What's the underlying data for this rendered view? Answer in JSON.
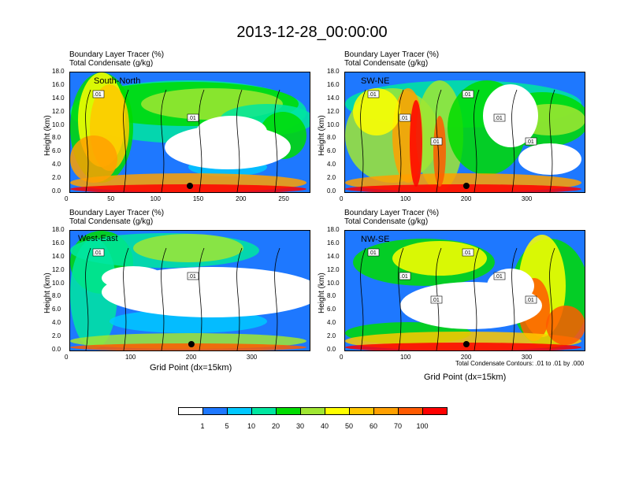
{
  "figure": {
    "title": "2013-12-28_00:00:00",
    "xlabel": "Grid Point (dx=15km)",
    "contour_note": "Total Condensate Contours: .01 to .01 by .000",
    "label_line1": "Boundary Layer Tracer    (%)",
    "label_line2": "Total Condensate    (g/kg)",
    "ylabel": "Height (km)",
    "yticks": [
      "0.0",
      "2.0",
      "4.0",
      "6.0",
      "8.0",
      "10.0",
      "12.0",
      "14.0",
      "16.0",
      "18.0"
    ]
  },
  "colorbar": {
    "labels": [
      "1",
      "5",
      "10",
      "20",
      "30",
      "40",
      "50",
      "60",
      "70",
      "100"
    ],
    "colors": [
      "#ffffff",
      "#1e78ff",
      "#00c8ff",
      "#00e6a0",
      "#00dc00",
      "#a0e632",
      "#ffff00",
      "#ffc800",
      "#ffa000",
      "#ff5a00",
      "#ff0000"
    ]
  },
  "chart_data": [
    {
      "type": "heatmap",
      "name": "South-North",
      "title": "Boundary Layer Tracer (%) / Total Condensate (g/kg)",
      "xlabel": "",
      "ylabel": "Height (km)",
      "xlim": [
        0,
        280
      ],
      "ylim": [
        0,
        18
      ],
      "xticks": [
        "0",
        "50",
        "100",
        "150",
        "200",
        "250"
      ],
      "xtick_values": [
        0,
        50,
        100,
        150,
        200,
        250
      ],
      "marker_x": 140,
      "contour_labels": [
        ".01",
        ".01"
      ]
    },
    {
      "type": "heatmap",
      "name": "SW-NE",
      "title": "Boundary Layer Tracer (%) / Total Condensate (g/kg)",
      "xlabel": "",
      "ylabel": "Height (km)",
      "xlim": [
        0,
        395
      ],
      "ylim": [
        0,
        18
      ],
      "xticks": [
        "0",
        "100",
        "200",
        "300"
      ],
      "xtick_values": [
        0,
        100,
        200,
        300
      ],
      "marker_x": 200,
      "contour_labels": [
        ".01",
        ".01",
        ".01",
        ".01",
        ".01",
        ".01"
      ]
    },
    {
      "type": "heatmap",
      "name": "West-East",
      "title": "Boundary Layer Tracer (%) / Total Condensate (g/kg)",
      "xlabel": "Grid Point (dx=15km)",
      "ylabel": "Height (km)",
      "xlim": [
        0,
        395
      ],
      "ylim": [
        0,
        18
      ],
      "xticks": [
        "0",
        "100",
        "200",
        "300"
      ],
      "xtick_values": [
        0,
        100,
        200,
        300
      ],
      "marker_x": 200,
      "contour_labels": [
        ".01",
        ".01"
      ]
    },
    {
      "type": "heatmap",
      "name": "NW-SE",
      "title": "Boundary Layer Tracer (%) / Total Condensate (g/kg)",
      "xlabel": "Grid Point (dx=15km)",
      "ylabel": "Height (km)",
      "xlim": [
        0,
        395
      ],
      "ylim": [
        0,
        18
      ],
      "xticks": [
        "0",
        "100",
        "200",
        "300"
      ],
      "xtick_values": [
        0,
        100,
        200,
        300
      ],
      "marker_x": 200,
      "contour_labels": [
        ".01",
        ".01",
        ".01",
        ".01",
        ".01",
        ".01"
      ]
    }
  ]
}
